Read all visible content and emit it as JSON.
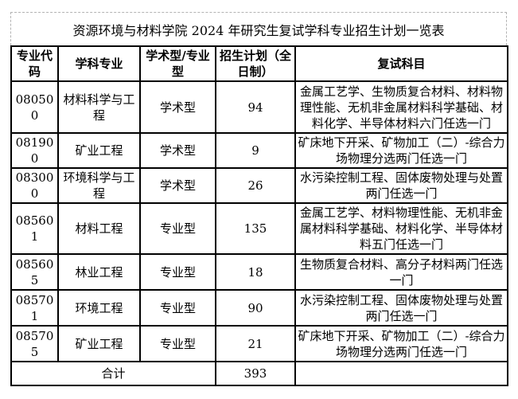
{
  "title": "资源环境与材料学院 2024 年研究生复试学科专业招生计划一览表",
  "table": {
    "headers": {
      "code": "专业代码",
      "discipline": "学科专业",
      "degree_type": "学术型/专业型",
      "enrollment_plan": "招生计划（全日制）",
      "exam_subjects": "复试科目"
    },
    "rows": [
      {
        "code": "080500",
        "discipline": "材料科学与工程",
        "degree_type": "学术型",
        "plan": "94",
        "subjects": "金属工艺学、生物质复合材料、材料物理性能、无机非金属材料科学基础、材料化学、半导体材料六门任选一门"
      },
      {
        "code": "081900",
        "discipline": "矿业工程",
        "degree_type": "学术型",
        "plan": "9",
        "subjects": "矿床地下开采、矿物加工（二）-综合力场物理分选两门任选一门"
      },
      {
        "code": "083000",
        "discipline": "环境科学与工程",
        "degree_type": "学术型",
        "plan": "26",
        "subjects": "水污染控制工程、固体废物处理与处置两门任选一门"
      },
      {
        "code": "085601",
        "discipline": "材料工程",
        "degree_type": "专业型",
        "plan": "135",
        "subjects": "金属工艺学、材料物理性能、无机非金属材料科学基础、材料化学、半导体材料五门任选一门"
      },
      {
        "code": "085605",
        "discipline": "林业工程",
        "degree_type": "专业型",
        "plan": "18",
        "subjects": "生物质复合材料、高分子材料两门任选一门"
      },
      {
        "code": "085701",
        "discipline": "环境工程",
        "degree_type": "专业型",
        "plan": "90",
        "subjects": "水污染控制工程、固体废物处理与处置两门任选一门"
      },
      {
        "code": "085705",
        "discipline": "矿业工程",
        "degree_type": "专业型",
        "plan": "21",
        "subjects": "矿床地下开采、矿物加工（二）-综合力场物理分选两门任选一门"
      }
    ],
    "total_row": {
      "label": "合计",
      "plan": "393",
      "subjects": ""
    }
  },
  "colors": {
    "background": "#ffffff",
    "text": "#000000",
    "grid_border": "#000000",
    "title_border": "#b3b3b3"
  }
}
